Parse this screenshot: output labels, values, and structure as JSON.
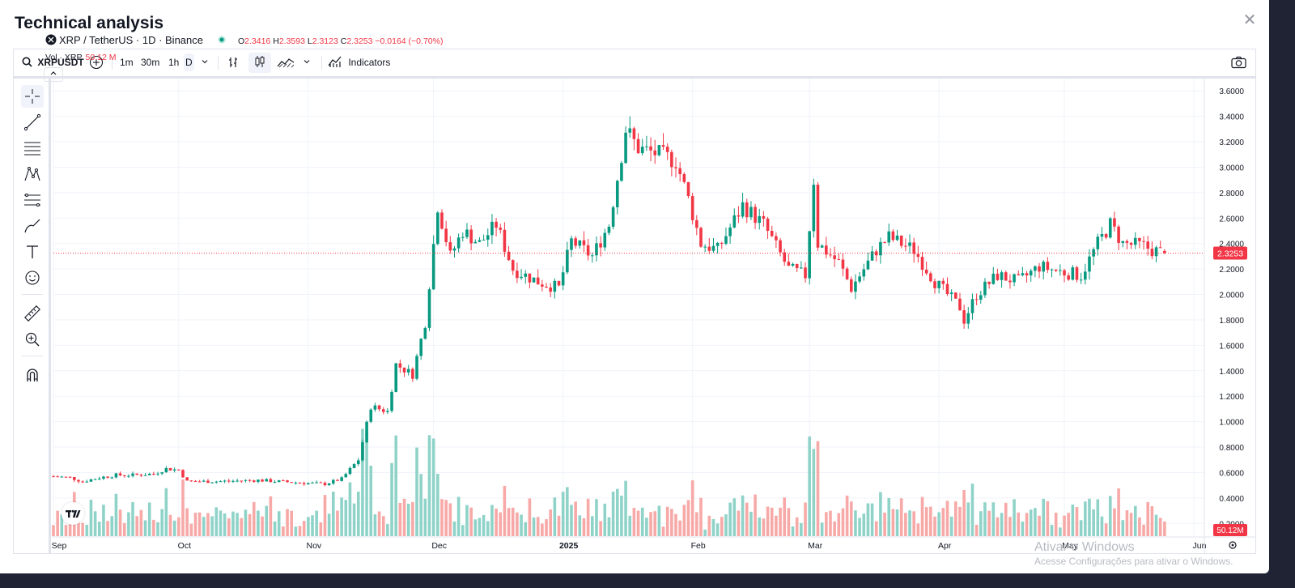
{
  "modal": {
    "title": "Technical analysis",
    "close_icon": "close-icon"
  },
  "toolbar": {
    "symbol": "XRPUSDT",
    "intervals": [
      "1m",
      "30m",
      "1h",
      "D"
    ],
    "active_interval": "D",
    "indicators_label": "Indicators"
  },
  "legend": {
    "title": "XRP / TetherUS · 1D · Binance",
    "open_label": "O",
    "open": "2.3416",
    "high_label": "H",
    "high": "2.3593",
    "low_label": "L",
    "low": "2.3123",
    "close_label": "C",
    "close": "2.3253",
    "change": "−0.0164 (−0.70%)",
    "volume_label": "Vol · XRP",
    "volume_value": "50.12 M"
  },
  "watermark": {
    "line1": "Ativar o Windows",
    "line2": "Acesse Configurações para ativar o Windows."
  },
  "colors": {
    "up": "#089981",
    "down": "#f23645",
    "vol_up": "#8fd3c8",
    "vol_down": "#f7a9a7",
    "grid": "#f0f3fa"
  },
  "chart_data": {
    "type": "candlestick",
    "title": "XRP / TetherUS · 1D · Binance",
    "price_axis": {
      "ticks": [
        "3.6000",
        "3.4000",
        "3.2000",
        "3.0000",
        "2.8000",
        "2.6000",
        "2.4000",
        "2.2000",
        "2.0000",
        "1.8000",
        "1.6000",
        "1.4000",
        "1.2000",
        "1.0000",
        "0.8000",
        "0.6000",
        "0.4000",
        "0.2000"
      ],
      "range": [
        0.1,
        3.7
      ],
      "last_price": "2.3253",
      "last_volume": "50.12M"
    },
    "time_axis": {
      "ticks": [
        {
          "label": "Sep",
          "date": "2024-09-01"
        },
        {
          "label": "Oct",
          "date": "2024-10-01"
        },
        {
          "label": "Nov",
          "date": "2024-11-01"
        },
        {
          "label": "Dec",
          "date": "2024-12-01"
        },
        {
          "label": "2025",
          "date": "2025-01-01"
        },
        {
          "label": "Feb",
          "date": "2025-02-01"
        },
        {
          "label": "Mar",
          "date": "2025-03-01"
        },
        {
          "label": "Apr",
          "date": "2025-04-01"
        },
        {
          "label": "May",
          "date": "2025-05-01"
        },
        {
          "label": "Jun",
          "date": "2025-06-01"
        }
      ],
      "range": [
        "2024-09-01",
        "2025-06-01"
      ]
    },
    "grid": true,
    "close_trend": [
      {
        "date": "2024-09-01",
        "close": 0.57
      },
      {
        "date": "2024-09-05",
        "close": 0.56
      },
      {
        "date": "2024-09-08",
        "close": 0.53
      },
      {
        "date": "2024-09-12",
        "close": 0.56
      },
      {
        "date": "2024-09-16",
        "close": 0.58
      },
      {
        "date": "2024-09-20",
        "close": 0.58
      },
      {
        "date": "2024-09-25",
        "close": 0.59
      },
      {
        "date": "2024-09-28",
        "close": 0.63
      },
      {
        "date": "2024-10-01",
        "close": 0.62
      },
      {
        "date": "2024-10-03",
        "close": 0.53
      },
      {
        "date": "2024-10-10",
        "close": 0.53
      },
      {
        "date": "2024-10-20",
        "close": 0.54
      },
      {
        "date": "2024-10-30",
        "close": 0.52
      },
      {
        "date": "2024-11-05",
        "close": 0.51
      },
      {
        "date": "2024-11-09",
        "close": 0.55
      },
      {
        "date": "2024-11-13",
        "close": 0.7
      },
      {
        "date": "2024-11-16",
        "close": 1.12
      },
      {
        "date": "2024-11-20",
        "close": 1.08
      },
      {
        "date": "2024-11-22",
        "close": 1.45
      },
      {
        "date": "2024-11-26",
        "close": 1.37
      },
      {
        "date": "2024-11-29",
        "close": 1.78
      },
      {
        "date": "2024-12-02",
        "close": 2.7
      },
      {
        "date": "2024-12-05",
        "close": 2.3
      },
      {
        "date": "2024-12-08",
        "close": 2.5
      },
      {
        "date": "2024-12-12",
        "close": 2.4
      },
      {
        "date": "2024-12-16",
        "close": 2.55
      },
      {
        "date": "2024-12-20",
        "close": 2.2
      },
      {
        "date": "2024-12-26",
        "close": 2.1
      },
      {
        "date": "2024-12-31",
        "close": 2.05
      },
      {
        "date": "2025-01-03",
        "close": 2.42
      },
      {
        "date": "2025-01-08",
        "close": 2.3
      },
      {
        "date": "2025-01-12",
        "close": 2.55
      },
      {
        "date": "2025-01-15",
        "close": 3.1
      },
      {
        "date": "2025-01-16",
        "close": 3.3
      },
      {
        "date": "2025-01-19",
        "close": 3.15
      },
      {
        "date": "2025-01-24",
        "close": 3.1
      },
      {
        "date": "2025-01-28",
        "close": 3.05
      },
      {
        "date": "2025-01-31",
        "close": 2.75
      },
      {
        "date": "2025-02-03",
        "close": 2.4
      },
      {
        "date": "2025-02-07",
        "close": 2.35
      },
      {
        "date": "2025-02-13",
        "close": 2.7
      },
      {
        "date": "2025-02-18",
        "close": 2.55
      },
      {
        "date": "2025-02-24",
        "close": 2.2
      },
      {
        "date": "2025-02-28",
        "close": 2.15
      },
      {
        "date": "2025-03-02",
        "close": 2.9
      },
      {
        "date": "2025-03-03",
        "close": 2.4
      },
      {
        "date": "2025-03-08",
        "close": 2.25
      },
      {
        "date": "2025-03-11",
        "close": 2.05
      },
      {
        "date": "2025-03-17",
        "close": 2.35
      },
      {
        "date": "2025-03-20",
        "close": 2.45
      },
      {
        "date": "2025-03-26",
        "close": 2.35
      },
      {
        "date": "2025-03-31",
        "close": 2.1
      },
      {
        "date": "2025-04-06",
        "close": 1.9
      },
      {
        "date": "2025-04-07",
        "close": 1.8
      },
      {
        "date": "2025-04-10",
        "close": 2.0
      },
      {
        "date": "2025-04-15",
        "close": 2.15
      },
      {
        "date": "2025-04-20",
        "close": 2.1
      },
      {
        "date": "2025-04-25",
        "close": 2.22
      },
      {
        "date": "2025-04-30",
        "close": 2.18
      },
      {
        "date": "2025-05-05",
        "close": 2.15
      },
      {
        "date": "2025-05-09",
        "close": 2.4
      },
      {
        "date": "2025-05-12",
        "close": 2.55
      },
      {
        "date": "2025-05-15",
        "close": 2.4
      },
      {
        "date": "2025-05-20",
        "close": 2.38
      },
      {
        "date": "2025-05-22",
        "close": 2.35
      },
      {
        "date": "2025-05-25",
        "close": 2.3253
      }
    ]
  }
}
